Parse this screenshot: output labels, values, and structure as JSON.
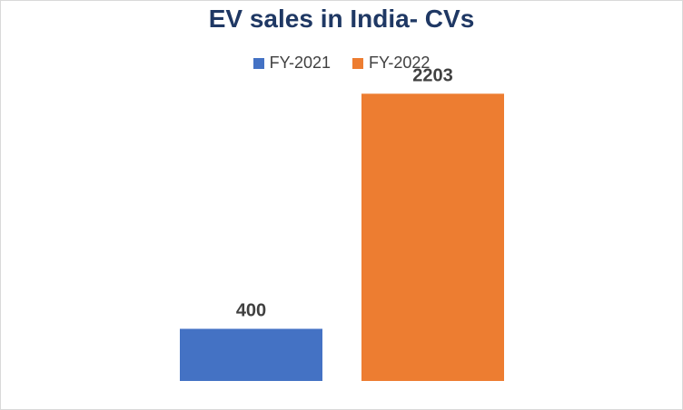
{
  "chart_data": {
    "type": "bar",
    "title": "EV sales in India- CVs",
    "categories": [
      ""
    ],
    "series": [
      {
        "name": "FY-2021",
        "values": [
          400
        ],
        "color": "#4472c4"
      },
      {
        "name": "FY-2022",
        "values": [
          2203
        ],
        "color": "#ed7d31"
      }
    ],
    "data_labels": [
      "400",
      "2203"
    ],
    "xlabel": "",
    "ylabel": "",
    "ylim": [
      0,
      2400
    ],
    "grid": false,
    "legend_position": "top"
  }
}
